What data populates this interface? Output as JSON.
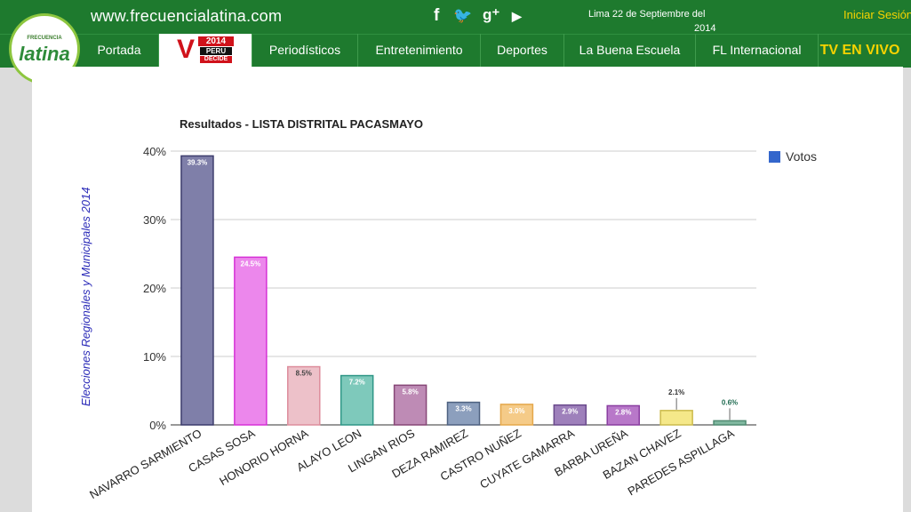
{
  "header": {
    "site_url": "www.frecuencialatina.com",
    "social": [
      {
        "icon": "facebook-icon",
        "glyph": "f"
      },
      {
        "icon": "twitter-icon",
        "glyph": "🐦"
      },
      {
        "icon": "google-plus-icon",
        "glyph": "g⁺"
      },
      {
        "icon": "youtube-icon",
        "glyph": "▶"
      }
    ],
    "date_line1": "Lima 22 de Septiembre del",
    "date_line2": "2014",
    "login": "Iniciar Sesión"
  },
  "logo": {
    "small": "FRECUENCIA",
    "main": "latina"
  },
  "nav": {
    "items": [
      "Portada",
      "",
      "Periodísticos",
      "Entretenimiento",
      "Deportes",
      "La Buena Escuela",
      "FL Internacional",
      "TV EN VIVO"
    ],
    "badge_year": "2014",
    "badge_line1": "PERU",
    "badge_line2": "DECIDE"
  },
  "side_label": "Elecciones Regionales y Municipales 2014",
  "chart_data": {
    "type": "bar",
    "title": "Resultados - LISTA DISTRITAL PACASMAYO",
    "xlabel": "",
    "ylabel": "",
    "ylim": [
      0,
      40
    ],
    "yticks": [
      "0%",
      "10%",
      "20%",
      "30%",
      "40%"
    ],
    "grid": true,
    "legend": {
      "label": "Votos",
      "position": "top-right",
      "color": "#3366cc"
    },
    "categories": [
      "NAVARRO SARMIENTO",
      "CASAS SOSA",
      "HONORIO HORNA",
      "ALAYO LEON",
      "LINGAN RIOS",
      "DEZA RAMIREZ",
      "CASTRO NUÑEZ",
      "CUYATE GAMARRA",
      "BARBA UREÑA",
      "BAZAN CHAVEZ",
      "PAREDES ASPILLAGA"
    ],
    "values": [
      39.3,
      24.5,
      8.5,
      7.2,
      5.8,
      3.3,
      3.0,
      2.9,
      2.8,
      2.1,
      0.6
    ],
    "labels": [
      "39.3%",
      "24.5%",
      "8.5%",
      "7.2%",
      "5.8%",
      "3.3%",
      "3.0%",
      "2.9%",
      "2.8%",
      "2.1%",
      "0.6%"
    ],
    "colors": [
      "#7f7fa9",
      "#ec87ec",
      "#edc1c9",
      "#7ec9bb",
      "#be8bb5",
      "#8c9fbd",
      "#f5cb88",
      "#9e80bb",
      "#b878c9",
      "#f5e889",
      "#80b8a0"
    ],
    "borders": [
      "#3c3c6c",
      "#d631d6",
      "#dd8d9c",
      "#2f9686",
      "#874777",
      "#4e6180",
      "#e5a84b",
      "#6a4a8c",
      "#8a3ea0",
      "#ccbb4c",
      "#4f8a70"
    ],
    "label_colors": [
      "#ffffff",
      "#ffffff",
      "#444444",
      "#ffffff",
      "#ffffff",
      "#ffffff",
      "#ffffff",
      "#ffffff",
      "#ffffff",
      "#333333",
      "#1f6a50"
    ]
  }
}
